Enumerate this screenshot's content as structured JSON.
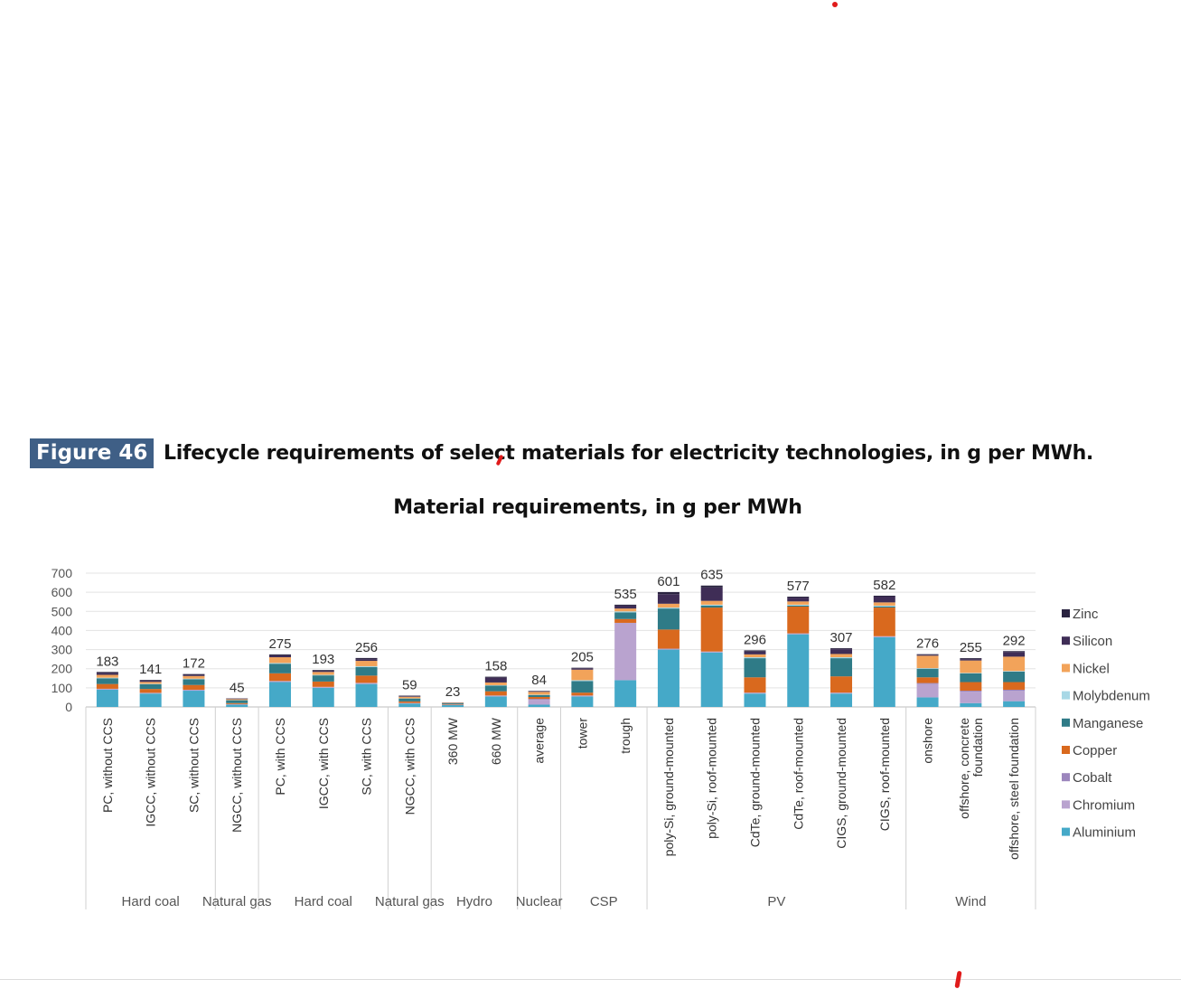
{
  "figure": {
    "label": "Figure 46",
    "caption": "Lifecycle requirements of select materials for electricity technologies, in g per MWh."
  },
  "chart_data": {
    "type": "bar",
    "stacked": true,
    "title": "Material requirements, in g per MWh",
    "ylim": [
      0,
      700
    ],
    "yticks": [
      0,
      100,
      200,
      300,
      400,
      500,
      600,
      700
    ],
    "grid": true,
    "legend_position": "right",
    "categories": [
      "PC, without CCS",
      "IGCC, without CCS",
      "SC, without CCS",
      "NGCC, without CCS",
      "PC, with CCS",
      "IGCC, with CCS",
      "SC, with CCS",
      "NGCC, with CCS",
      "360 MW",
      "660 MW",
      "average",
      "tower",
      "trough",
      "poly-Si, ground-mounted",
      "poly-Si, roof-mounted",
      "CdTe, ground-mounted",
      "CdTe, roof-mounted",
      "CIGS, ground-mounted",
      "CIGS, roof-mounted",
      "onshore",
      "offshore, concrete foundation",
      "offshore, steel foundation"
    ],
    "multiline_labels": {
      "20": [
        "offshore, concrete",
        "foundation"
      ]
    },
    "groups": [
      {
        "label": "Hard coal",
        "start": 0,
        "end": 2
      },
      {
        "label": "Natural gas",
        "start": 3,
        "end": 3
      },
      {
        "label": "Hard coal",
        "start": 4,
        "end": 6
      },
      {
        "label": "Natural gas",
        "start": 7,
        "end": 7
      },
      {
        "label": "Hydro",
        "start": 8,
        "end": 9
      },
      {
        "label": "Nuclear",
        "start": 10,
        "end": 10
      },
      {
        "label": "CSP",
        "start": 11,
        "end": 12
      },
      {
        "label": "PV",
        "start": 13,
        "end": 18
      },
      {
        "label": "Wind",
        "start": 19,
        "end": 21
      }
    ],
    "totals": [
      183,
      141,
      172,
      45,
      275,
      193,
      256,
      59,
      23,
      158,
      84,
      205,
      535,
      601,
      635,
      296,
      577,
      307,
      582,
      276,
      255,
      292
    ],
    "series": [
      {
        "name": "Aluminium",
        "color": "#45a9c8",
        "values": [
          90,
          70,
          85,
          12,
          130,
          100,
          120,
          18,
          10,
          55,
          12,
          55,
          140,
          300,
          285,
          70,
          380,
          70,
          365,
          50,
          20,
          30
        ]
      },
      {
        "name": "Chromium",
        "color": "#b9a3cf",
        "values": [
          5,
          4,
          5,
          3,
          6,
          5,
          6,
          3,
          2,
          5,
          25,
          5,
          300,
          5,
          5,
          5,
          5,
          5,
          5,
          70,
          60,
          55
        ]
      },
      {
        "name": "Cobalt",
        "color": "#9c86bd",
        "values": [
          0,
          0,
          0,
          0,
          0,
          0,
          0,
          0,
          0,
          0,
          5,
          0,
          0,
          0,
          0,
          0,
          0,
          0,
          0,
          5,
          5,
          5
        ]
      },
      {
        "name": "Copper",
        "color": "#d9691e",
        "values": [
          25,
          20,
          25,
          5,
          40,
          28,
          38,
          8,
          3,
          22,
          10,
          15,
          20,
          100,
          230,
          80,
          140,
          85,
          150,
          30,
          45,
          40
        ]
      },
      {
        "name": "Manganese",
        "color": "#2f7b87",
        "values": [
          30,
          25,
          30,
          15,
          50,
          32,
          45,
          15,
          4,
          30,
          10,
          60,
          35,
          110,
          10,
          100,
          5,
          95,
          5,
          45,
          45,
          55
        ]
      },
      {
        "name": "Molybdenum",
        "color": "#a8d8e6",
        "values": [
          3,
          2,
          3,
          1,
          4,
          3,
          4,
          1,
          0,
          2,
          2,
          5,
          5,
          5,
          5,
          5,
          5,
          5,
          5,
          3,
          3,
          3
        ]
      },
      {
        "name": "Nickel",
        "color": "#f2a35a",
        "values": [
          15,
          10,
          14,
          5,
          30,
          15,
          28,
          8,
          2,
          14,
          15,
          55,
          15,
          20,
          20,
          15,
          17,
          17,
          17,
          65,
          65,
          75
        ]
      },
      {
        "name": "Silicon",
        "color": "#3f2d56",
        "values": [
          10,
          6,
          6,
          3,
          10,
          6,
          9,
          3,
          1,
          25,
          3,
          7,
          15,
          50,
          70,
          15,
          20,
          25,
          30,
          5,
          7,
          24
        ]
      },
      {
        "name": "Zinc",
        "color": "#2a2340",
        "values": [
          5,
          4,
          4,
          1,
          5,
          4,
          6,
          3,
          1,
          5,
          2,
          3,
          5,
          11,
          10,
          6,
          5,
          5,
          5,
          3,
          5,
          5
        ]
      }
    ]
  }
}
